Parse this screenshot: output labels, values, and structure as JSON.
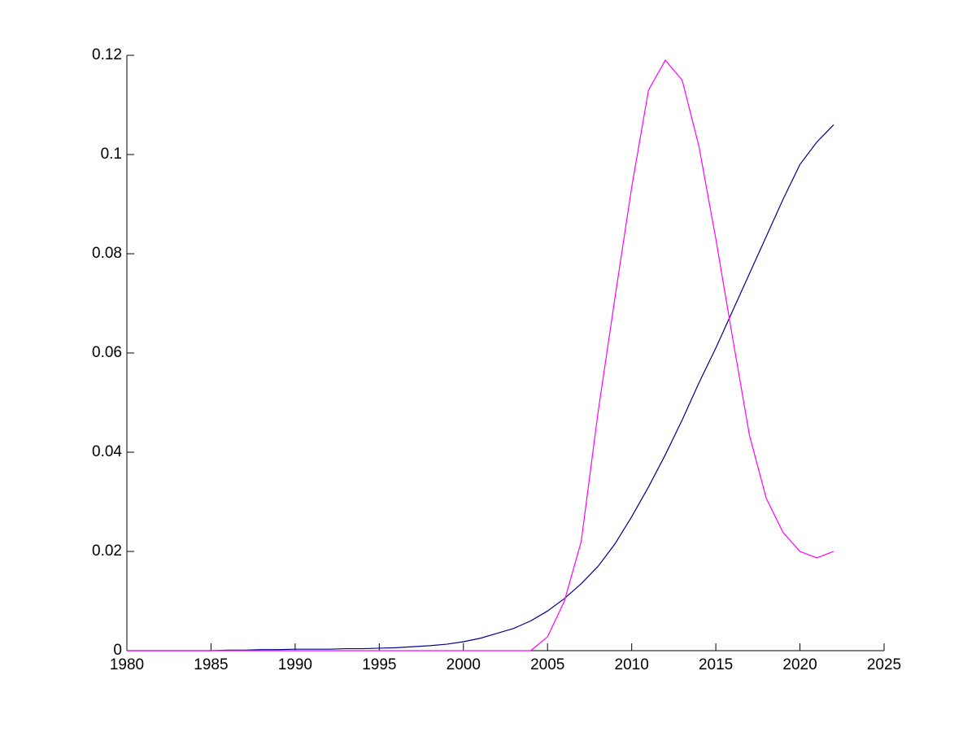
{
  "chart_data": {
    "type": "line",
    "x": [
      1980,
      1981,
      1982,
      1983,
      1984,
      1985,
      1986,
      1987,
      1988,
      1989,
      1990,
      1991,
      1992,
      1993,
      1994,
      1995,
      1996,
      1997,
      1998,
      1999,
      2000,
      2001,
      2002,
      2003,
      2004,
      2005,
      2006,
      2007,
      2008,
      2009,
      2010,
      2011,
      2012,
      2013,
      2014,
      2015,
      2016,
      2017,
      2018,
      2019,
      2020,
      2021,
      2022
    ],
    "series": [
      {
        "color": "#00008b",
        "values": [
          0,
          0,
          0,
          0,
          0,
          0,
          0.0001,
          0.0001,
          0.0002,
          0.0002,
          0.0003,
          0.0003,
          0.0003,
          0.0004,
          0.0004,
          0.0005,
          0.0006,
          0.0008,
          0.001,
          0.0013,
          0.0018,
          0.0025,
          0.0035,
          0.0045,
          0.006,
          0.008,
          0.0105,
          0.0135,
          0.017,
          0.0215,
          0.027,
          0.033,
          0.0395,
          0.0465,
          0.054,
          0.061,
          0.0685,
          0.076,
          0.0835,
          0.091,
          0.098,
          0.1025,
          0.106
        ]
      },
      {
        "color": "#ff00ff",
        "values": [
          0,
          0,
          0,
          0,
          0,
          0,
          0,
          0,
          0,
          0,
          0,
          0,
          0,
          0,
          0,
          0,
          0,
          0,
          0,
          0,
          0,
          0,
          0,
          0,
          0,
          0.0028,
          0.01,
          0.022,
          0.048,
          0.071,
          0.0934,
          0.113,
          0.119,
          0.115,
          0.1016,
          0.083,
          0.063,
          0.0434,
          0.0307,
          0.0238,
          0.02,
          0.0187,
          0.02
        ]
      }
    ],
    "xlim": [
      1980,
      2025
    ],
    "xticks": [
      1980,
      1985,
      1990,
      1995,
      2000,
      2005,
      2010,
      2015,
      2020,
      2025
    ],
    "ylim": [
      0,
      0.12
    ],
    "yticks": [
      0,
      0.02,
      0.04,
      0.06,
      0.08,
      0.1,
      0.12
    ]
  }
}
